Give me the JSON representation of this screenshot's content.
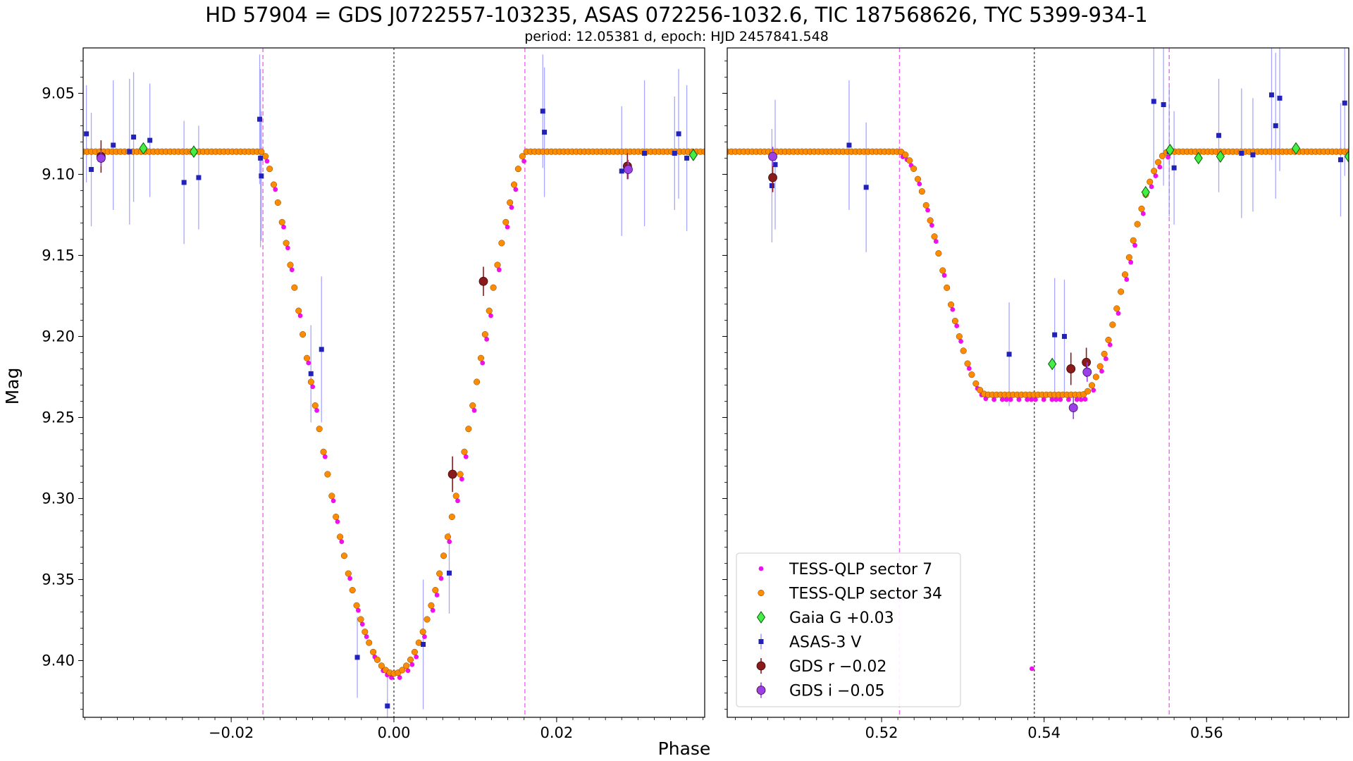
{
  "chart_data": {
    "type": "scatter",
    "title": "HD 57904 = GDS J0722557-103235, ASAS 072256-1032.6, TIC 187568626, TYC 5399-934-1",
    "subtitle": "period: 12.05381 d, epoch: HJD 2457841.548",
    "xlabel": "Phase",
    "ylabel": "Mag",
    "y_inverted": true,
    "ylim": [
      9.435,
      9.022
    ],
    "y_ticks": [
      "9.05",
      "9.10",
      "9.15",
      "9.20",
      "9.25",
      "9.30",
      "9.35",
      "9.40"
    ],
    "legend_position": "lower-left of right panel",
    "legend": [
      {
        "label": "TESS-QLP sector 7",
        "color": "#ee11ee",
        "marker": "circle-small"
      },
      {
        "label": "TESS-QLP sector 34",
        "color": "#ff8c00",
        "marker": "circle"
      },
      {
        "label": "Gaia G +0.03",
        "color": "#44ee44",
        "marker": "diamond"
      },
      {
        "label": "ASAS-3 V",
        "color": "#2222bb",
        "marker": "square"
      },
      {
        "label": "GDS r −0.02",
        "color": "#8b1a1a",
        "marker": "circle-large"
      },
      {
        "label": "GDS i −0.05",
        "color": "#9b40e8",
        "marker": "circle-large"
      }
    ],
    "panels": [
      {
        "xlim": [
          -0.0382,
          0.0382
        ],
        "x_ticks": [
          "−0.02",
          "0.00",
          "0.02"
        ],
        "x_tick_values": [
          -0.02,
          0.0,
          0.02
        ],
        "eclipse_center": 0.0,
        "contact_lines": [
          -0.0161,
          0.0161
        ],
        "tess_model": {
          "center": 0.0,
          "half_width": 0.0161,
          "flat_half_width": 0.0,
          "mag_out": 9.086,
          "mag_in": 9.408
        },
        "gaia": [
          [
            -0.0308,
            9.084
          ],
          [
            -0.0246,
            9.086
          ],
          [
            0.0368,
            9.088
          ]
        ],
        "asas": [
          [
            -0.0378,
            9.075,
            0.03
          ],
          [
            -0.0372,
            9.097,
            0.035
          ],
          [
            -0.0345,
            9.082,
            0.04
          ],
          [
            -0.0325,
            9.086,
            0.045
          ],
          [
            -0.032,
            9.077,
            0.04
          ],
          [
            -0.03,
            9.079,
            0.035
          ],
          [
            -0.0258,
            9.105,
            0.038
          ],
          [
            -0.024,
            9.102,
            0.032
          ],
          [
            -0.0165,
            9.066,
            0.04
          ],
          [
            -0.0164,
            9.09,
            0.055
          ],
          [
            -0.0163,
            9.101,
            0.04
          ],
          [
            -0.0102,
            9.223,
            0.03
          ],
          [
            -0.0089,
            9.208,
            0.045
          ],
          [
            -0.0045,
            9.398,
            0.025
          ],
          [
            -0.0008,
            9.428,
            0.02
          ],
          [
            0.0036,
            9.39,
            0.04
          ],
          [
            0.0068,
            9.346,
            0.025
          ],
          [
            0.0183,
            9.061,
            0.035
          ],
          [
            0.0185,
            9.074,
            0.04
          ],
          [
            0.028,
            9.098,
            0.04
          ],
          [
            0.0308,
            9.087,
            0.045
          ],
          [
            0.0345,
            9.087,
            0.035
          ],
          [
            0.035,
            9.075,
            0.04
          ],
          [
            0.036,
            9.09,
            0.045
          ]
        ],
        "gds_r": [
          [
            -0.036,
            9.089,
            0.01
          ],
          [
            0.0072,
            9.285,
            0.011
          ],
          [
            0.011,
            9.166,
            0.009
          ],
          [
            0.0287,
            9.095,
            0.008
          ]
        ],
        "gds_i": [
          [
            -0.036,
            9.09,
            0.005
          ],
          [
            0.0288,
            9.097,
            0.006
          ]
        ]
      },
      {
        "xlim": [
          0.501,
          0.5775
        ],
        "x_ticks": [
          "0.52",
          "0.54",
          "0.56"
        ],
        "x_tick_values": [
          0.52,
          0.54,
          0.56
        ],
        "eclipse_center": 0.5388,
        "contact_lines": [
          0.5222,
          0.5554
        ],
        "tess_model": {
          "center": 0.5388,
          "half_width": 0.0166,
          "flat_half_width": 0.0058,
          "mag_out": 9.086,
          "mag_in": 9.236
        },
        "outlier_point": [
          0.5385,
          9.405
        ],
        "gaia": [
          [
            0.541,
            9.217
          ],
          [
            0.5525,
            9.111
          ],
          [
            0.5555,
            9.085
          ],
          [
            0.559,
            9.09
          ],
          [
            0.5617,
            9.089
          ],
          [
            0.571,
            9.084
          ],
          [
            0.5775,
            9.089
          ]
        ],
        "asas": [
          [
            0.5065,
            9.107,
            0.035
          ],
          [
            0.5069,
            9.094,
            0.04
          ],
          [
            0.516,
            9.082,
            0.04
          ],
          [
            0.5181,
            9.108,
            0.04
          ],
          [
            0.5357,
            9.211,
            0.032
          ],
          [
            0.5413,
            9.199,
            0.035
          ],
          [
            0.5425,
            9.2,
            0.035
          ],
          [
            0.5535,
            9.055,
            0.045
          ],
          [
            0.5547,
            9.057,
            0.05
          ],
          [
            0.5554,
            9.086,
            0.04
          ],
          [
            0.556,
            9.096,
            0.035
          ],
          [
            0.5615,
            9.076,
            0.035
          ],
          [
            0.5643,
            9.087,
            0.04
          ],
          [
            0.5657,
            9.088,
            0.035
          ],
          [
            0.568,
            9.051,
            0.04
          ],
          [
            0.5685,
            9.07,
            0.045
          ],
          [
            0.569,
            9.053,
            0.045
          ],
          [
            0.577,
            9.056,
            0.045
          ],
          [
            0.5765,
            9.091,
            0.035
          ]
        ],
        "gds_r": [
          [
            0.5066,
            9.102,
            0.009
          ],
          [
            0.5433,
            9.22,
            0.01
          ],
          [
            0.5452,
            9.216,
            0.009
          ]
        ],
        "gds_i": [
          [
            0.5066,
            9.089,
            0.006
          ],
          [
            0.5436,
            9.244,
            0.007
          ],
          [
            0.5453,
            9.222,
            0.006
          ]
        ]
      }
    ]
  }
}
